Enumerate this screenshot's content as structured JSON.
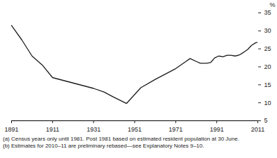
{
  "chart_data": {
    "type": "line",
    "y_label": "%",
    "x": [
      1891,
      1896,
      1901,
      1906,
      1911,
      1921,
      1931,
      1936,
      1941,
      1947,
      1954,
      1961,
      1966,
      1971,
      1976,
      1978,
      1981,
      1983,
      1986,
      1988,
      1990,
      1992,
      1994,
      1996,
      1998,
      2000,
      2002,
      2004,
      2006,
      2008,
      2010,
      2011
    ],
    "values": [
      31.5,
      27.5,
      23,
      20.5,
      17,
      15.5,
      14,
      13,
      11.5,
      9.8,
      14.2,
      16.5,
      18,
      19.5,
      21.5,
      22.3,
      21.5,
      21,
      21,
      21.2,
      22.5,
      23,
      22.8,
      23.2,
      23.2,
      23,
      23.3,
      24,
      24.8,
      26,
      26.7,
      26.8
    ],
    "color": "#1a1a1a",
    "xlim": [
      1891,
      2011
    ],
    "xticks": [
      1891,
      1911,
      1931,
      1951,
      1971,
      1991,
      2011
    ],
    "ylim": [
      5,
      35
    ],
    "yticks": [
      5,
      10,
      15,
      20,
      25,
      30,
      35
    ],
    "grid": false,
    "annotations": [
      "(a) Census years only until 1981. Post 1981 based on estimated resident population at 30 June.",
      "(b) Estimates for 2010–11 are preliminary rebased—see Explanatory Notes 9–10."
    ]
  }
}
